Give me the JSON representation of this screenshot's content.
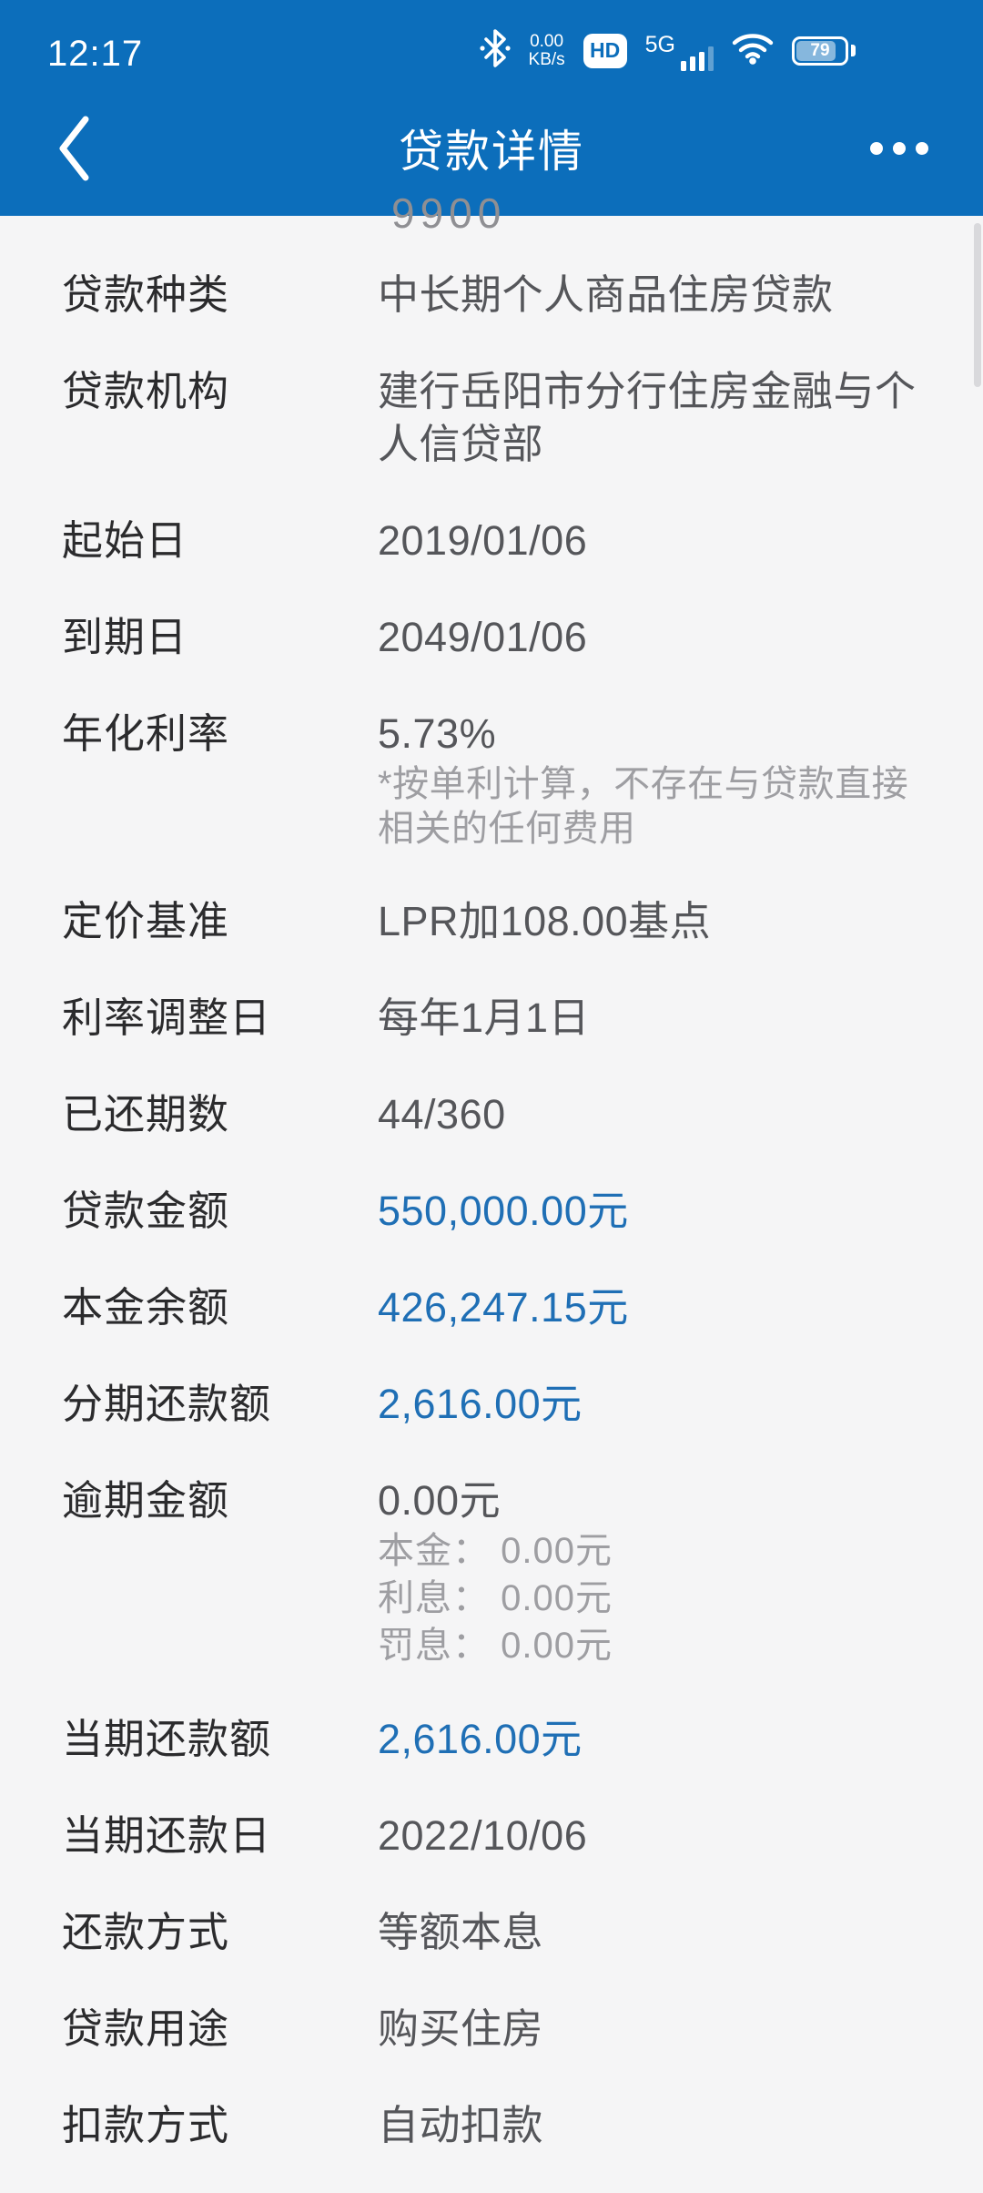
{
  "colors": {
    "header_blue": "#0C6EBB",
    "value_blue": "#1F6FB5",
    "background": "#F5F5F6"
  },
  "status_bar": {
    "time": "12:17",
    "net_speed_value": "0.00",
    "net_speed_unit": "KB/s",
    "hd_label": "HD",
    "network_type": "5G",
    "battery_percent": "79"
  },
  "nav": {
    "title": "贷款详情"
  },
  "partial_row": {
    "value": "9900"
  },
  "rows": [
    {
      "label": "贷款种类",
      "value": "中长期个人商品住房贷款",
      "value_color": "dark"
    },
    {
      "label": "贷款机构",
      "value": "建行岳阳市分行住房金融与个人信贷部",
      "value_color": "dark"
    },
    {
      "label": "起始日",
      "value": "2019/01/06",
      "value_color": "dark"
    },
    {
      "label": "到期日",
      "value": "2049/01/06",
      "value_color": "dark"
    },
    {
      "label": "年化利率",
      "value": "5.73%",
      "value_color": "dark",
      "note": "*按单利计算，不存在与贷款直接相关的任何费用"
    },
    {
      "label": "定价基准",
      "value": "LPR加108.00基点",
      "value_color": "dark"
    },
    {
      "label": "利率调整日",
      "value": "每年1月1日",
      "value_color": "dark"
    },
    {
      "label": "已还期数",
      "value": "44/360",
      "value_color": "dark"
    },
    {
      "label": "贷款金额",
      "value": "550,000.00元",
      "value_color": "blue"
    },
    {
      "label": "本金余额",
      "value": "426,247.15元",
      "value_color": "blue"
    },
    {
      "label": "分期还款额",
      "value": "2,616.00元",
      "value_color": "blue"
    },
    {
      "label": "逾期金额",
      "value": "0.00元",
      "value_color": "dark",
      "subs": [
        "本金： 0.00元",
        "利息： 0.00元",
        "罚息： 0.00元"
      ]
    },
    {
      "label": "当期还款额",
      "value": "2,616.00元",
      "value_color": "blue"
    },
    {
      "label": "当期还款日",
      "value": "2022/10/06",
      "value_color": "dark"
    },
    {
      "label": "还款方式",
      "value": "等额本息",
      "value_color": "dark"
    },
    {
      "label": "贷款用途",
      "value": "购买住房",
      "value_color": "dark"
    },
    {
      "label": "扣款方式",
      "value": "自动扣款",
      "value_color": "dark"
    }
  ]
}
